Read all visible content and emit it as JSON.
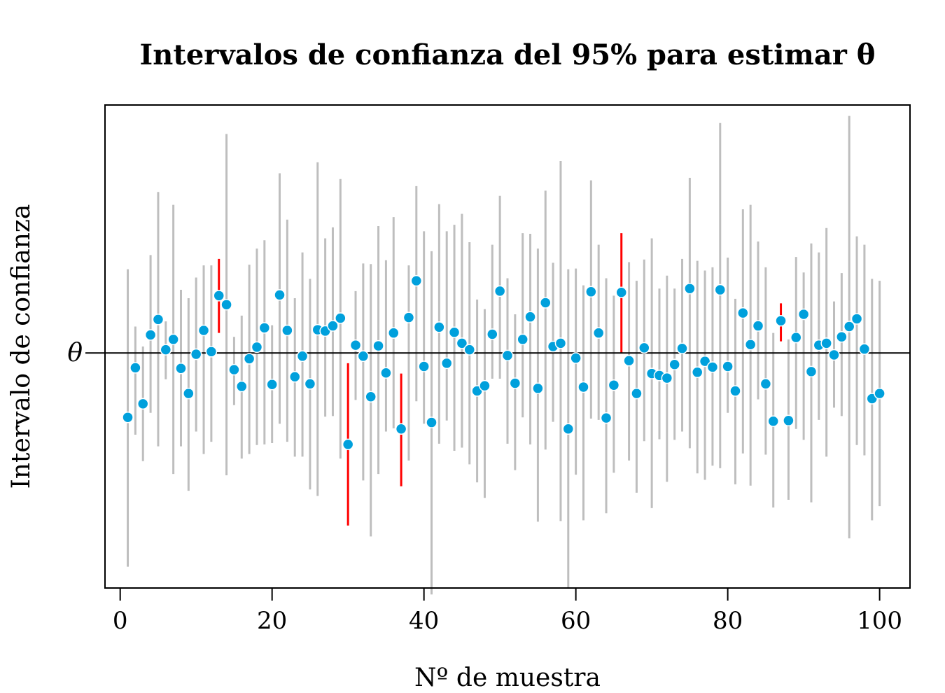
{
  "chart_data": {
    "type": "scatter",
    "title": "Intervalos de confianza del 95% para estimar θ",
    "xlabel": "Nº de muestra",
    "ylabel": "Intervalo de confianza",
    "reference_line": {
      "label": "θ",
      "value": 0
    },
    "xlim": [
      -2,
      104
    ],
    "ylim": [
      -3.65,
      3.85
    ],
    "x_ticks": [
      0,
      20,
      40,
      60,
      80,
      100
    ],
    "x_tick_labels": [
      "0",
      "20",
      "40",
      "60",
      "80",
      "100"
    ],
    "grid": false,
    "legend": "none",
    "colors": {
      "interval_covers": "#bebebe",
      "interval_misses": "#ff0000",
      "point_fill": "#00a0dc",
      "point_stroke": "#ffffff",
      "reference_line": "#000000"
    },
    "series": [
      {
        "x": [
          1,
          2,
          3,
          4,
          5,
          6,
          7,
          8,
          9,
          10,
          11,
          12,
          13,
          14,
          15,
          16,
          17,
          18,
          19,
          20,
          21,
          22,
          23,
          24,
          25,
          26,
          27,
          28,
          29,
          30,
          31,
          32,
          33,
          34,
          35,
          36,
          37,
          38,
          39,
          40,
          41,
          42,
          43,
          44,
          45,
          46,
          47,
          48,
          49,
          50,
          51,
          52,
          53,
          54,
          55,
          56,
          57,
          58,
          59,
          60,
          61,
          62,
          63,
          64,
          65,
          66,
          67,
          68,
          69,
          70,
          71,
          72,
          73,
          74,
          75,
          76,
          77,
          78,
          79,
          80,
          81,
          82,
          83,
          84,
          85,
          86,
          87,
          88,
          89,
          90,
          91,
          92,
          93,
          94,
          95,
          96,
          97,
          98,
          99,
          100
        ],
        "estimate": [
          -1.0,
          -0.23,
          -0.79,
          0.28,
          0.52,
          0.05,
          0.21,
          -0.24,
          -0.63,
          -0.02,
          0.35,
          0.02,
          0.89,
          0.75,
          -0.26,
          -0.52,
          -0.09,
          0.09,
          0.39,
          -0.49,
          0.9,
          0.35,
          -0.37,
          -0.05,
          -0.48,
          0.36,
          0.34,
          0.42,
          0.54,
          -1.42,
          0.12,
          -0.05,
          -0.68,
          0.11,
          -0.31,
          0.31,
          -1.18,
          0.55,
          1.12,
          -0.21,
          -1.08,
          0.4,
          -0.16,
          0.32,
          0.15,
          0.05,
          -0.59,
          -0.51,
          0.29,
          0.96,
          -0.04,
          -0.47,
          0.21,
          0.56,
          -0.55,
          0.78,
          0.1,
          0.15,
          -1.18,
          -0.08,
          -0.53,
          0.95,
          0.31,
          -1.01,
          -0.5,
          0.94,
          -0.12,
          -0.63,
          0.08,
          -0.32,
          -0.35,
          -0.39,
          -0.18,
          0.07,
          1.0,
          -0.3,
          -0.13,
          -0.22,
          0.98,
          -0.21,
          -0.59,
          0.62,
          0.13,
          0.42,
          -0.48,
          -1.06,
          0.5,
          -1.05,
          0.24,
          0.6,
          -0.29,
          0.12,
          0.15,
          -0.03,
          0.25,
          0.41,
          0.53,
          0.06,
          -0.71,
          -0.63
        ],
        "lower": [
          -3.32,
          -1.27,
          -1.68,
          -0.93,
          -1.45,
          -0.41,
          -1.88,
          -1.45,
          -2.14,
          -1.22,
          -1.57,
          -1.38,
          0.31,
          -1.9,
          -0.81,
          -1.64,
          -1.57,
          -1.43,
          -1.42,
          -1.4,
          -1.1,
          -1.38,
          -1.61,
          -1.61,
          -2.12,
          -2.22,
          -0.99,
          -0.98,
          -1.64,
          -2.68,
          -0.73,
          -1.98,
          -2.85,
          -1.88,
          -1.22,
          -1.17,
          -2.07,
          -1.67,
          -0.75,
          -1.1,
          -3.75,
          -1.41,
          -1.05,
          -1.52,
          -1.47,
          -1.73,
          -2.01,
          -2.25,
          -0.4,
          -0.4,
          -1.41,
          -1.82,
          -1.0,
          -1.42,
          -2.62,
          -1.5,
          -1.07,
          -2.61,
          -3.65,
          -1.89,
          -2.6,
          -1.02,
          -1.04,
          -2.49,
          -1.86,
          0.0,
          -1.67,
          -2.17,
          -1.37,
          -2.41,
          -1.34,
          -2.0,
          -1.35,
          -1.22,
          -1.48,
          -1.87,
          -1.97,
          -1.75,
          -1.79,
          -0.93,
          -2.04,
          -1.56,
          -2.06,
          -0.72,
          -1.58,
          -2.4,
          0.18,
          -2.28,
          -1.18,
          -1.35,
          -2.32,
          -1.04,
          -1.61,
          -0.85,
          -0.98,
          -2.88,
          -1.43,
          -1.59,
          -2.6,
          -2.38
        ],
        "upper": [
          1.3,
          0.41,
          0.1,
          1.52,
          2.5,
          0.49,
          2.3,
          0.98,
          0.85,
          1.17,
          1.36,
          1.36,
          1.46,
          3.4,
          0.25,
          0.58,
          1.37,
          1.62,
          1.75,
          0.43,
          2.79,
          2.07,
          0.85,
          1.56,
          1.15,
          2.96,
          1.78,
          1.95,
          2.7,
          -0.16,
          0.96,
          1.39,
          1.38,
          1.97,
          1.44,
          2.11,
          -0.32,
          1.36,
          2.59,
          1.89,
          1.58,
          2.31,
          1.89,
          1.99,
          2.16,
          1.72,
          0.83,
          0.68,
          1.68,
          2.44,
          1.16,
          0.6,
          1.86,
          1.85,
          1.62,
          2.52,
          1.4,
          2.98,
          1.3,
          1.31,
          1.05,
          2.68,
          1.68,
          1.16,
          0.89,
          1.86,
          1.41,
          1.12,
          1.45,
          1.78,
          1.0,
          1.2,
          1.0,
          1.46,
          2.72,
          1.43,
          1.28,
          1.33,
          3.57,
          1.48,
          0.84,
          2.23,
          2.3,
          1.73,
          1.33,
          0.31,
          0.77,
          0.21,
          1.49,
          1.25,
          1.7,
          1.56,
          1.94,
          0.8,
          1.24,
          3.68,
          1.81,
          1.68,
          1.15,
          1.12
        ],
        "covers": [
          true,
          true,
          true,
          true,
          true,
          true,
          true,
          true,
          true,
          true,
          true,
          true,
          false,
          true,
          true,
          true,
          true,
          true,
          true,
          true,
          true,
          true,
          true,
          true,
          true,
          true,
          true,
          true,
          true,
          false,
          true,
          true,
          true,
          true,
          true,
          true,
          false,
          true,
          true,
          true,
          true,
          true,
          true,
          true,
          true,
          true,
          true,
          true,
          true,
          true,
          true,
          true,
          true,
          true,
          true,
          true,
          true,
          true,
          true,
          true,
          true,
          true,
          true,
          true,
          true,
          false,
          true,
          true,
          true,
          true,
          true,
          true,
          true,
          true,
          true,
          true,
          true,
          true,
          true,
          true,
          true,
          true,
          true,
          true,
          true,
          true,
          false,
          true,
          true,
          true,
          true,
          true,
          true,
          true,
          true,
          true,
          true,
          true,
          true,
          true
        ]
      }
    ]
  }
}
